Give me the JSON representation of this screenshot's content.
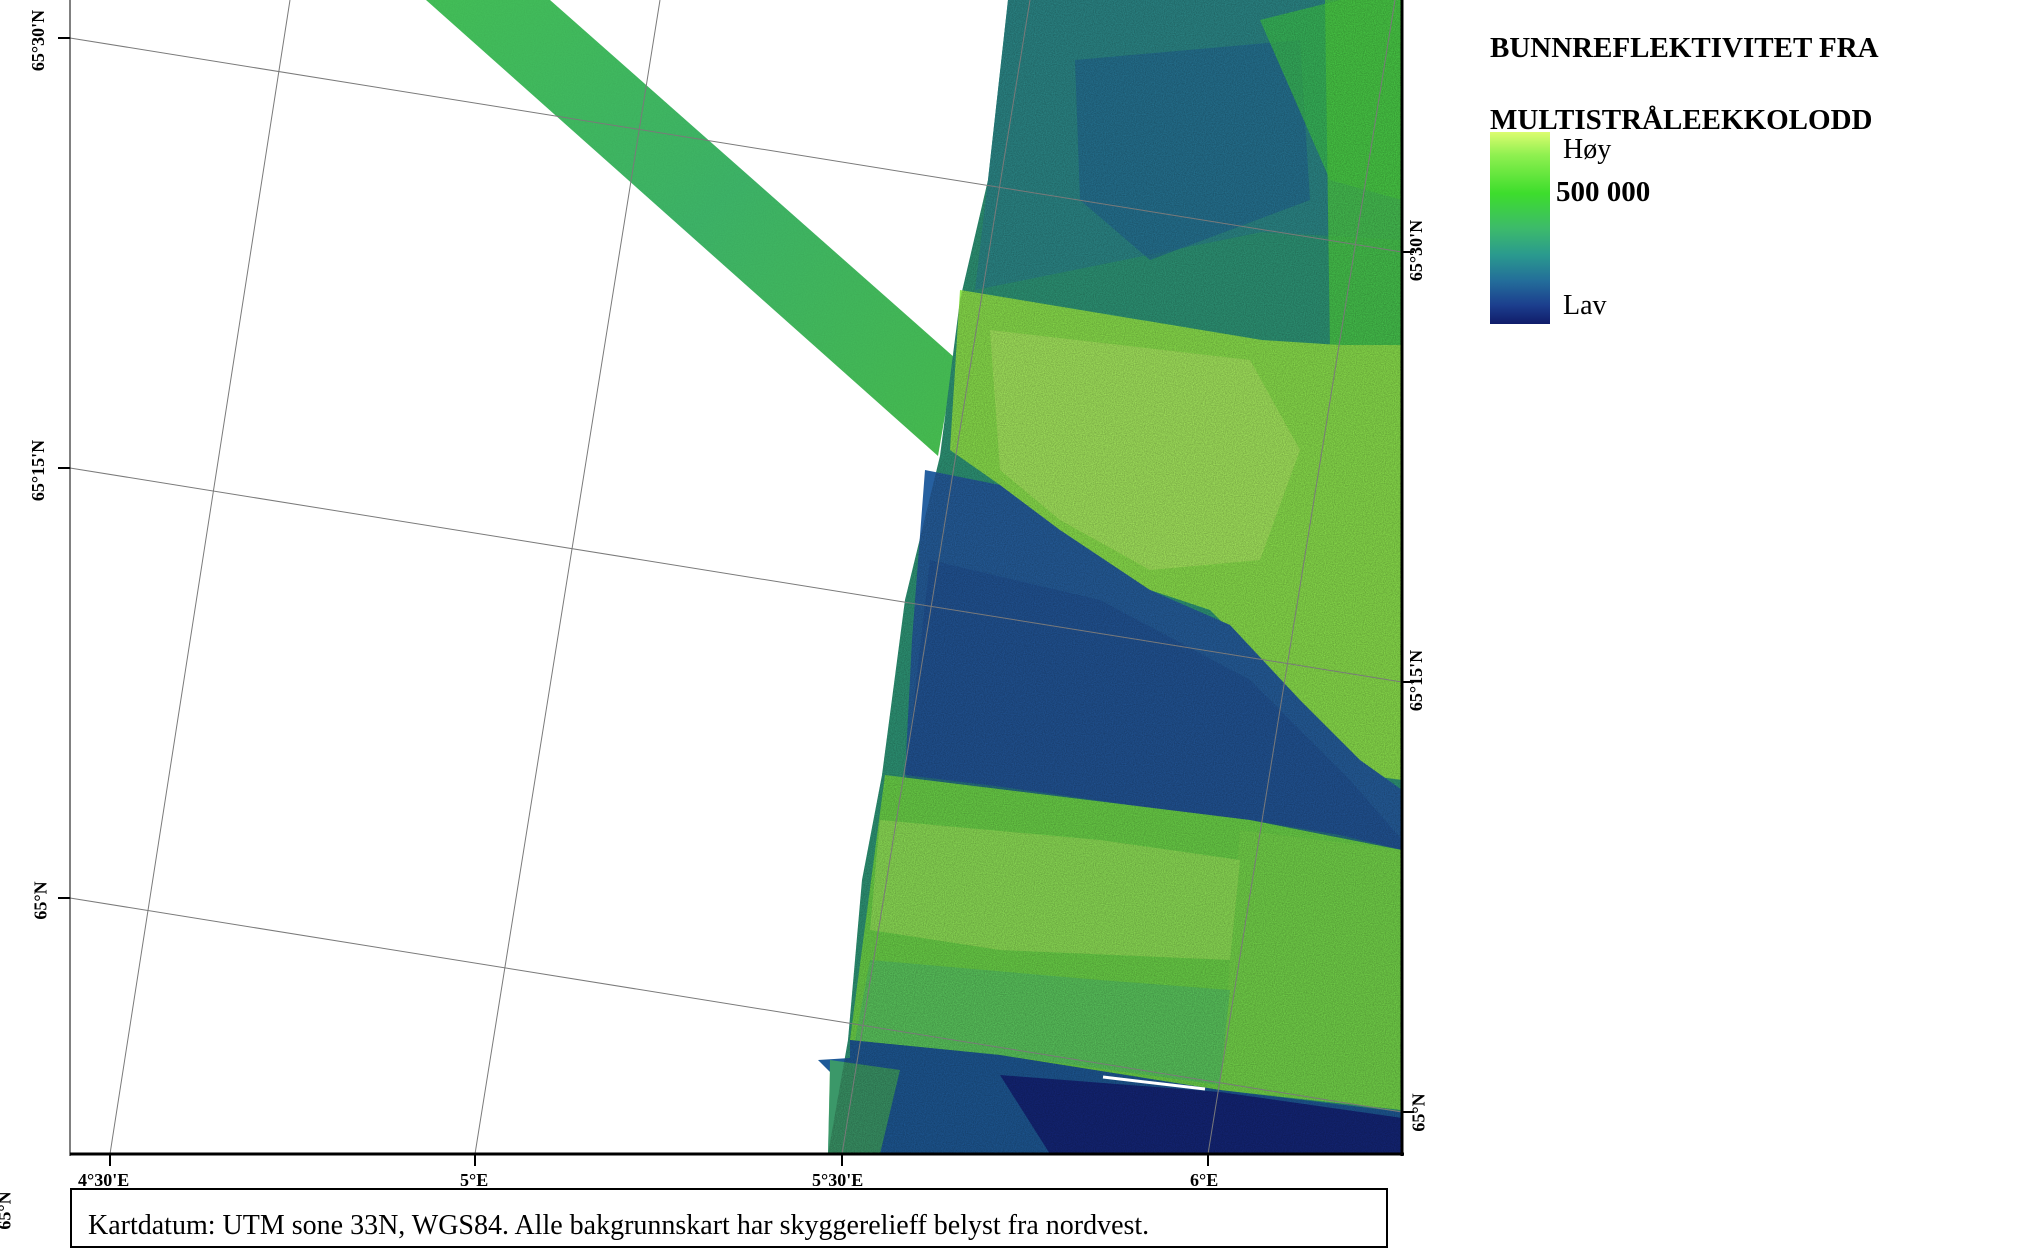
{
  "legend": {
    "title_lines": [
      "BUNNREFLEKTIVITET FRA",
      "MULTISTRÅLEEKKOLODD",
      "M 1: 500 000"
    ],
    "high_label": "Høy",
    "low_label": "Lav",
    "colors": {
      "high": "#dcfc70",
      "mid_high": "#3ddd2c",
      "mid": "#2a9a8e",
      "low": "#101c6a"
    }
  },
  "graticule": {
    "left_lat_labels": [
      "65°30'N",
      "65°15'N",
      "65°N"
    ],
    "right_lat_labels": [
      "65°30'N",
      "65°15'N",
      "65°N"
    ],
    "bottom_lon_labels": [
      "4°30'E",
      "5°E",
      "5°30'E",
      "6°E"
    ],
    "corner_lat_fragment": "65°N"
  },
  "footer": {
    "text": "Kartdatum:  UTM sone 33N, WGS84. Alle bakgrunnskart har skyggerelieff belyst fra nordvest."
  }
}
